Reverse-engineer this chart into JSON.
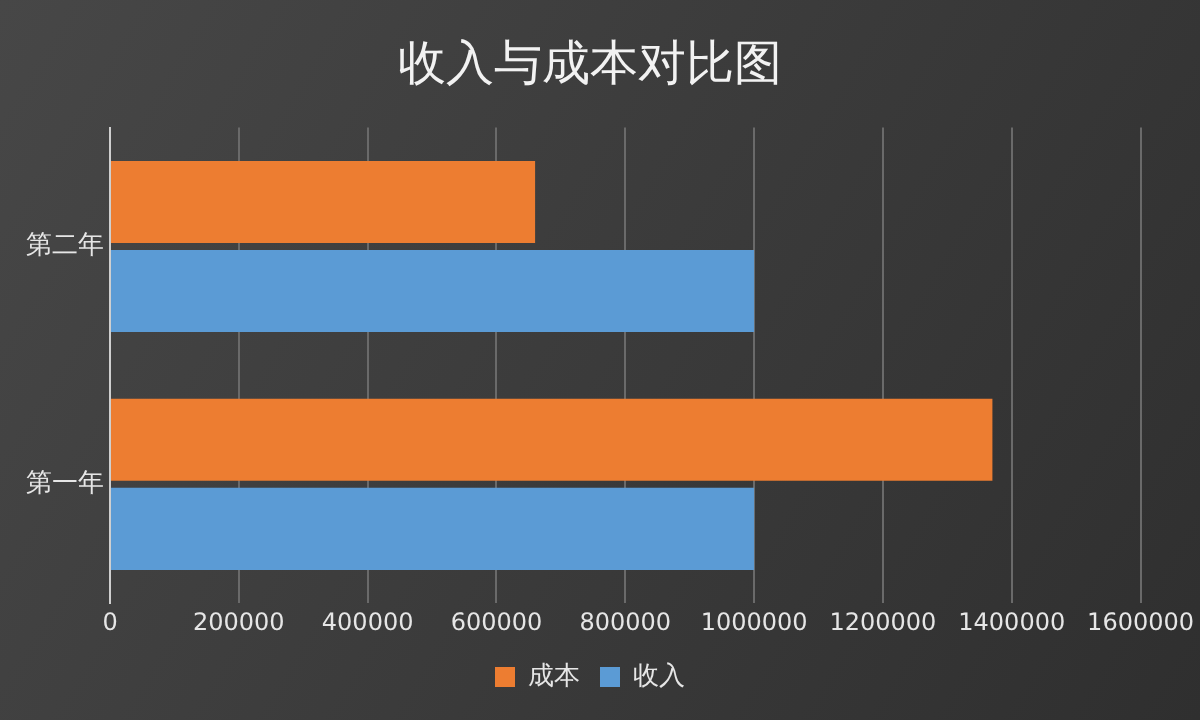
{
  "chart_data": {
    "type": "bar",
    "orientation": "horizontal",
    "title": "收入与成本对比图",
    "categories": [
      "第二年",
      "第一年"
    ],
    "series": [
      {
        "name": "成本",
        "color": "#ed7d31",
        "values": [
          660000,
          1370000
        ]
      },
      {
        "name": "收入",
        "color": "#5b9bd5",
        "values": [
          1000000,
          1000000
        ]
      }
    ],
    "xlim": [
      0,
      1600000
    ],
    "xticks": [
      0,
      200000,
      400000,
      600000,
      800000,
      1000000,
      1200000,
      1400000,
      1600000
    ],
    "grid": "x",
    "legend": "bottom"
  }
}
